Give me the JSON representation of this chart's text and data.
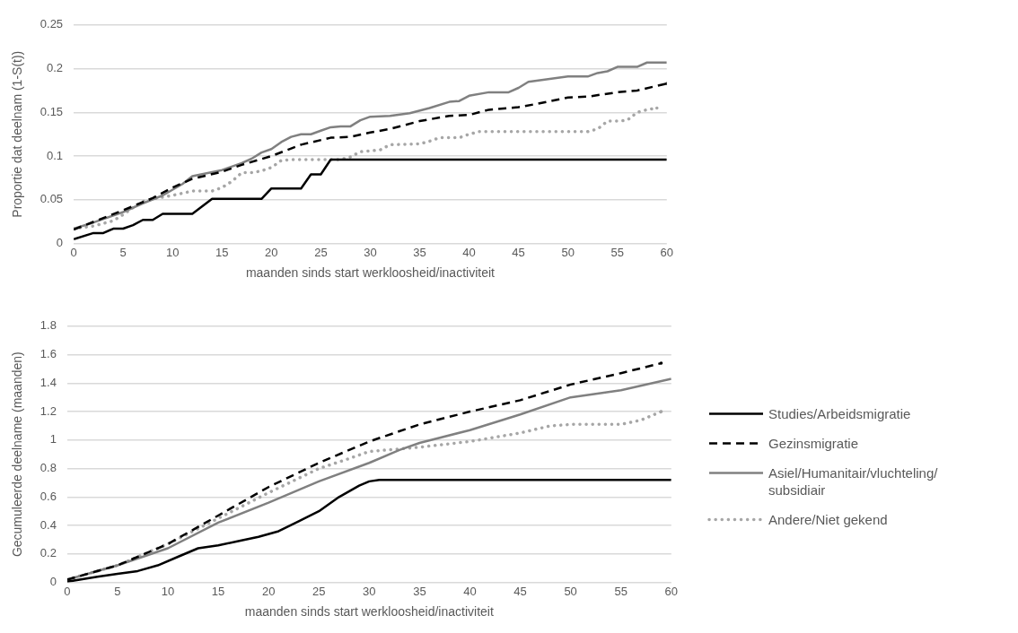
{
  "chart_data": [
    {
      "type": "line",
      "xlabel": "maanden sinds start werkloosheid/inactiviteit",
      "ylabel": "Proportie dat deelnam (1-S(t))",
      "xlim": [
        0,
        60
      ],
      "xticks": [
        0,
        5,
        10,
        15,
        20,
        25,
        30,
        35,
        40,
        45,
        50,
        55,
        60
      ],
      "ylim": [
        0,
        0.25
      ],
      "yticks": [
        0,
        0.05,
        0.1,
        0.15,
        0.2,
        0.25
      ],
      "grid": "y",
      "marker": "none",
      "legend": false,
      "series": [
        {
          "color": "#000000",
          "line_style": "solid",
          "x": [
            0,
            2,
            3,
            4,
            5,
            6,
            7,
            8,
            9,
            12,
            14,
            19,
            20,
            23,
            24,
            25,
            26,
            60
          ],
          "values": [
            0.005,
            0.012,
            0.012,
            0.017,
            0.017,
            0.021,
            0.027,
            0.027,
            0.034,
            0.034,
            0.051,
            0.051,
            0.063,
            0.063,
            0.079,
            0.079,
            0.096,
            0.096
          ]
        },
        {
          "color": "#000000",
          "line_style": "dashed",
          "x": [
            0,
            5,
            8,
            10,
            12,
            15,
            17,
            20,
            23,
            26,
            28,
            30,
            32,
            35,
            38,
            40,
            42,
            45,
            47,
            50,
            52,
            55,
            57,
            60
          ],
          "values": [
            0.016,
            0.038,
            0.052,
            0.064,
            0.074,
            0.082,
            0.09,
            0.1,
            0.113,
            0.121,
            0.122,
            0.127,
            0.131,
            0.14,
            0.146,
            0.147,
            0.153,
            0.156,
            0.16,
            0.167,
            0.168,
            0.173,
            0.175,
            0.183
          ]
        },
        {
          "color": "#808080",
          "line_style": "solid",
          "x": [
            0,
            2,
            5,
            7,
            9,
            11,
            12,
            15,
            17,
            18,
            19,
            20,
            21,
            22,
            23,
            24,
            25,
            26,
            27,
            28,
            29,
            30,
            32,
            34,
            36,
            38,
            39,
            40,
            42,
            44,
            45,
            46,
            48,
            50,
            52,
            53,
            54,
            55,
            57,
            58,
            60
          ],
          "values": [
            0.017,
            0.024,
            0.036,
            0.046,
            0.055,
            0.068,
            0.077,
            0.084,
            0.092,
            0.097,
            0.104,
            0.108,
            0.116,
            0.122,
            0.125,
            0.125,
            0.129,
            0.133,
            0.134,
            0.134,
            0.141,
            0.145,
            0.146,
            0.149,
            0.155,
            0.162,
            0.163,
            0.169,
            0.173,
            0.173,
            0.178,
            0.185,
            0.188,
            0.191,
            0.191,
            0.195,
            0.197,
            0.202,
            0.202,
            0.207,
            0.207
          ]
        },
        {
          "color": "#a6a6a6",
          "line_style": "dotted",
          "x": [
            0,
            2,
            4,
            5,
            6,
            7,
            8,
            9,
            10,
            12,
            14,
            15,
            16,
            17,
            18,
            19,
            20,
            21,
            22,
            27,
            28,
            29,
            30,
            31,
            32,
            35,
            36,
            37,
            39,
            40,
            41,
            52,
            53,
            54,
            55,
            56,
            57,
            58,
            59
          ],
          "values": [
            0.017,
            0.02,
            0.026,
            0.033,
            0.041,
            0.048,
            0.051,
            0.053,
            0.055,
            0.06,
            0.06,
            0.064,
            0.071,
            0.081,
            0.081,
            0.083,
            0.087,
            0.095,
            0.096,
            0.096,
            0.099,
            0.105,
            0.106,
            0.107,
            0.113,
            0.114,
            0.117,
            0.121,
            0.121,
            0.125,
            0.128,
            0.128,
            0.131,
            0.14,
            0.14,
            0.141,
            0.15,
            0.153,
            0.155
          ]
        }
      ]
    },
    {
      "type": "line",
      "xlabel": "maanden sinds start werkloosheid/inactiviteit",
      "ylabel": "Gecumuleerde deelname (maanden)",
      "xlim": [
        0,
        60
      ],
      "xticks": [
        0,
        5,
        10,
        15,
        20,
        25,
        30,
        35,
        40,
        45,
        50,
        55,
        60
      ],
      "ylim": [
        0,
        1.8
      ],
      "yticks": [
        0,
        0.2,
        0.4,
        0.6,
        0.8,
        1,
        1.2,
        1.4,
        1.6,
        1.8
      ],
      "grid": "y",
      "marker": "none",
      "legend": "right",
      "series": [
        {
          "name": "Studies/Arbeidsmigratie",
          "color": "#000000",
          "line_style": "solid",
          "x": [
            0,
            3,
            5,
            7,
            9,
            11,
            13,
            15,
            17,
            19,
            21,
            23,
            25,
            27,
            29,
            30,
            31,
            60
          ],
          "values": [
            0.005,
            0.04,
            0.06,
            0.08,
            0.12,
            0.18,
            0.24,
            0.26,
            0.29,
            0.32,
            0.36,
            0.43,
            0.5,
            0.6,
            0.68,
            0.71,
            0.72,
            0.72
          ]
        },
        {
          "name": "Gezinsmigratie",
          "color": "#000000",
          "line_style": "dashed",
          "x": [
            0,
            5,
            10,
            15,
            20,
            25,
            30,
            35,
            40,
            45,
            50,
            55,
            59
          ],
          "values": [
            0.02,
            0.12,
            0.27,
            0.47,
            0.67,
            0.84,
            0.99,
            1.11,
            1.2,
            1.28,
            1.39,
            1.47,
            1.54
          ]
        },
        {
          "name": "Asiel/Humanitair/vluchteling/ subsidiair",
          "color": "#808080",
          "line_style": "solid",
          "x": [
            0,
            5,
            10,
            15,
            20,
            25,
            30,
            33,
            35,
            40,
            45,
            50,
            55,
            60
          ],
          "values": [
            0.02,
            0.12,
            0.24,
            0.42,
            0.56,
            0.71,
            0.84,
            0.93,
            0.98,
            1.07,
            1.18,
            1.3,
            1.35,
            1.43
          ]
        },
        {
          "name": "Andere/Niet gekend",
          "color": "#a6a6a6",
          "line_style": "dotted",
          "x": [
            0,
            5,
            10,
            15,
            20,
            25,
            28,
            30,
            35,
            40,
            45,
            48,
            50,
            55,
            57,
            59
          ],
          "values": [
            0.02,
            0.12,
            0.27,
            0.45,
            0.63,
            0.8,
            0.87,
            0.92,
            0.95,
            0.99,
            1.05,
            1.1,
            1.11,
            1.11,
            1.14,
            1.2
          ]
        }
      ]
    }
  ]
}
